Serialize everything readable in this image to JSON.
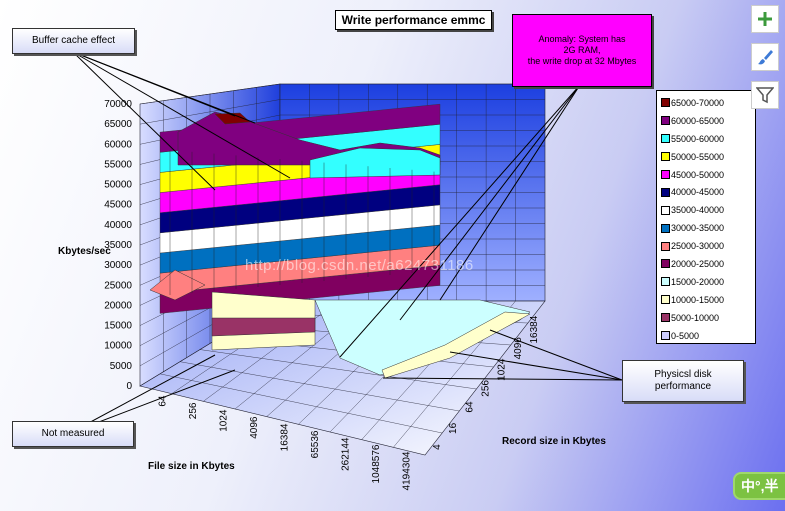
{
  "chart_data": {
    "type": "surface3d",
    "title": "Write performance emmc",
    "zlabel": "Kbytes/sec",
    "xlabel": "File size in Kbytes",
    "ylabel": "Record size in Kbytes",
    "zlim": [
      0,
      70000
    ],
    "z_ticks": [
      0,
      5000,
      10000,
      15000,
      20000,
      25000,
      30000,
      35000,
      40000,
      45000,
      50000,
      55000,
      60000,
      65000,
      70000
    ],
    "file_sizes": [
      64,
      256,
      1024,
      4096,
      16384,
      65536,
      262144,
      1048576,
      4194304
    ],
    "record_sizes": [
      4,
      16,
      64,
      256,
      1024,
      4096,
      16384
    ],
    "legend": [
      {
        "label": "65000-70000",
        "color": "#800000"
      },
      {
        "label": "60000-65000",
        "color": "#800080"
      },
      {
        "label": "55000-60000",
        "color": "#33ffff"
      },
      {
        "label": "50000-55000",
        "color": "#ffff00"
      },
      {
        "label": "45000-50000",
        "color": "#ff00ff"
      },
      {
        "label": "40000-45000",
        "color": "#000080"
      },
      {
        "label": "35000-40000",
        "color": "#ffffff"
      },
      {
        "label": "30000-35000",
        "color": "#0070c0"
      },
      {
        "label": "25000-30000",
        "color": "#ff8080"
      },
      {
        "label": "20000-25000",
        "color": "#800060"
      },
      {
        "label": "15000-20000",
        "color": "#ccffff"
      },
      {
        "label": "10000-15000",
        "color": "#ffffcc"
      },
      {
        "label": "5000-10000",
        "color": "#993366"
      },
      {
        "label": "0-5000",
        "color": "#ccccff"
      }
    ]
  },
  "annotations": {
    "buffer_cache": "Buffer cache effect",
    "anomaly_line1": "Anomaly: System has",
    "anomaly_line2": "2G  RAM,",
    "anomaly_line3": "the write drop at 32 Mbytes",
    "not_measured": "Not measured",
    "physical_line1": "Physicsl disk",
    "physical_line2": "performance"
  },
  "toolbar": {
    "add_icon": "plus-icon",
    "style_icon": "brush-icon",
    "filter_icon": "funnel-icon"
  },
  "watermark": "http://blog.csdn.net/a624731186",
  "ime": "中°,半"
}
